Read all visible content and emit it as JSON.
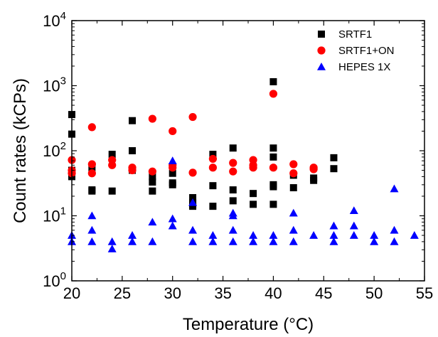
{
  "chart_data": {
    "type": "scatter",
    "title": "",
    "xlabel": "Temperature (°C)",
    "ylabel": "Count rates (kCPs)",
    "xlim": [
      20,
      55
    ],
    "ylim": [
      1,
      10000
    ],
    "yscale": "log",
    "grid": false,
    "legend_position": "top-right",
    "x_ticks": [
      {
        "value": 20,
        "label": "20"
      },
      {
        "value": 25,
        "label": "25"
      },
      {
        "value": 30,
        "label": "30"
      },
      {
        "value": 35,
        "label": "35"
      },
      {
        "value": 40,
        "label": "40"
      },
      {
        "value": 45,
        "label": "45"
      },
      {
        "value": 50,
        "label": "50"
      },
      {
        "value": 55,
        "label": "55"
      }
    ],
    "y_ticks": [
      {
        "value": 1,
        "base": "10",
        "exp": "0"
      },
      {
        "value": 10,
        "base": "10",
        "exp": "1"
      },
      {
        "value": 100,
        "base": "10",
        "exp": "2"
      },
      {
        "value": 1000,
        "base": "10",
        "exp": "3"
      },
      {
        "value": 10000,
        "base": "10",
        "exp": "4"
      }
    ],
    "series": [
      {
        "name": "SRTF1",
        "marker": "square",
        "color": "#000000",
        "points": [
          [
            20,
            360
          ],
          [
            20,
            180
          ],
          [
            20,
            50
          ],
          [
            20,
            40
          ],
          [
            22,
            55
          ],
          [
            22,
            25
          ],
          [
            22,
            24
          ],
          [
            24,
            88
          ],
          [
            24,
            24
          ],
          [
            26,
            290
          ],
          [
            26,
            100
          ],
          [
            26,
            50
          ],
          [
            28,
            40
          ],
          [
            28,
            33
          ],
          [
            28,
            24
          ],
          [
            30,
            45
          ],
          [
            30,
            32
          ],
          [
            30,
            30
          ],
          [
            32,
            19
          ],
          [
            32,
            16
          ],
          [
            32,
            15
          ],
          [
            32,
            14
          ],
          [
            34,
            88
          ],
          [
            34,
            29
          ],
          [
            34,
            14
          ],
          [
            36,
            110
          ],
          [
            36,
            25
          ],
          [
            36,
            17
          ],
          [
            38,
            22
          ],
          [
            38,
            15
          ],
          [
            40,
            1150
          ],
          [
            40,
            110
          ],
          [
            40,
            80
          ],
          [
            40,
            30
          ],
          [
            40,
            28
          ],
          [
            40,
            15
          ],
          [
            42,
            42
          ],
          [
            42,
            27
          ],
          [
            44,
            38
          ],
          [
            44,
            35
          ],
          [
            46,
            78
          ],
          [
            46,
            53
          ]
        ]
      },
      {
        "name": "SRTF1+ON",
        "marker": "circle",
        "color": "#ff0000",
        "points": [
          [
            20,
            72
          ],
          [
            20,
            50
          ],
          [
            20,
            45
          ],
          [
            22,
            230
          ],
          [
            22,
            62
          ],
          [
            22,
            45
          ],
          [
            24,
            72
          ],
          [
            24,
            60
          ],
          [
            26,
            55
          ],
          [
            26,
            50
          ],
          [
            28,
            310
          ],
          [
            28,
            48
          ],
          [
            30,
            200
          ],
          [
            30,
            60
          ],
          [
            30,
            55
          ],
          [
            32,
            330
          ],
          [
            32,
            46
          ],
          [
            34,
            75
          ],
          [
            34,
            55
          ],
          [
            36,
            65
          ],
          [
            36,
            48
          ],
          [
            38,
            72
          ],
          [
            38,
            60
          ],
          [
            38,
            55
          ],
          [
            40,
            750
          ],
          [
            40,
            55
          ],
          [
            42,
            62
          ],
          [
            42,
            45
          ],
          [
            44,
            55
          ],
          [
            44,
            52
          ]
        ]
      },
      {
        "name": "HEPES 1X",
        "marker": "triangle",
        "color": "#0000ff",
        "points": [
          [
            20,
            5
          ],
          [
            20,
            4
          ],
          [
            22,
            10
          ],
          [
            22,
            6
          ],
          [
            22,
            4
          ],
          [
            24,
            4
          ],
          [
            24,
            3.1
          ],
          [
            26,
            5
          ],
          [
            26,
            4
          ],
          [
            28,
            8
          ],
          [
            28,
            4
          ],
          [
            30,
            70
          ],
          [
            30,
            9
          ],
          [
            30,
            7
          ],
          [
            32,
            16
          ],
          [
            32,
            6
          ],
          [
            32,
            4
          ],
          [
            34,
            5
          ],
          [
            34,
            4
          ],
          [
            36,
            11
          ],
          [
            36,
            10
          ],
          [
            36,
            6
          ],
          [
            36,
            4
          ],
          [
            38,
            5
          ],
          [
            38,
            4
          ],
          [
            40,
            5
          ],
          [
            40,
            4
          ],
          [
            42,
            11
          ],
          [
            42,
            6
          ],
          [
            42,
            4
          ],
          [
            44,
            5
          ],
          [
            46,
            7
          ],
          [
            46,
            5
          ],
          [
            46,
            4
          ],
          [
            48,
            12
          ],
          [
            48,
            7
          ],
          [
            48,
            5
          ],
          [
            50,
            5
          ],
          [
            50,
            4
          ],
          [
            52,
            26
          ],
          [
            52,
            6
          ],
          [
            52,
            4
          ],
          [
            54,
            5
          ]
        ]
      }
    ]
  }
}
